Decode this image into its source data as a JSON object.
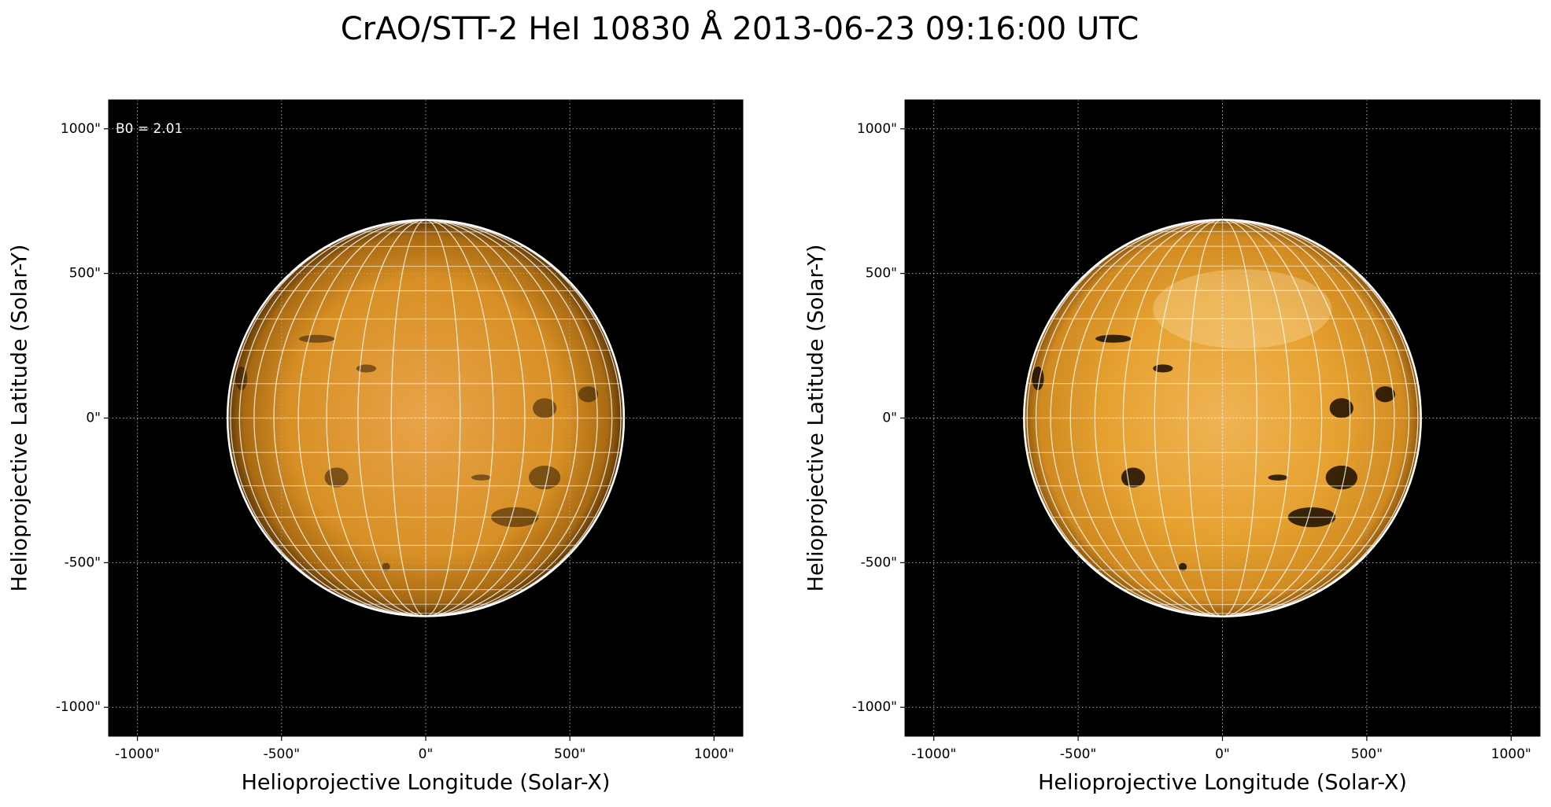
{
  "title": "CrAO/STT-2 HeI 10830 Å 2013-06-23 09:16:00 UTC",
  "chart_data": [
    {
      "type": "image",
      "annotation": "B0 = 2.01",
      "contrast": "low",
      "xlabel": "Helioprojective Longitude (Solar-X)",
      "ylabel": "Helioprojective Latitude (Solar-Y)",
      "xlim": [
        -1100,
        1100
      ],
      "ylim": [
        -1100,
        1100
      ],
      "xticks": [
        {
          "value": -1000,
          "label": "-1000\""
        },
        {
          "value": -500,
          "label": "-500\""
        },
        {
          "value": 0,
          "label": "0\""
        },
        {
          "value": 500,
          "label": "500\""
        },
        {
          "value": 1000,
          "label": "1000\""
        }
      ],
      "yticks": [
        {
          "value": -1000,
          "label": "-1000\""
        },
        {
          "value": -500,
          "label": "-500\""
        },
        {
          "value": 0,
          "label": "0\""
        },
        {
          "value": 500,
          "label": "500\""
        },
        {
          "value": 1000,
          "label": "1000\""
        }
      ],
      "grid": true
    },
    {
      "type": "image",
      "contrast": "high",
      "xlabel": "Helioprojective Longitude (Solar-X)",
      "ylabel": "Helioprojective Latitude (Solar-Y)",
      "xlim": [
        -1100,
        1100
      ],
      "ylim": [
        -1100,
        1100
      ],
      "xticks": [
        {
          "value": -1000,
          "label": "-1000\""
        },
        {
          "value": -500,
          "label": "-500\""
        },
        {
          "value": 0,
          "label": "0\""
        },
        {
          "value": 500,
          "label": "500\""
        },
        {
          "value": 1000,
          "label": "1000\""
        }
      ],
      "yticks": [
        {
          "value": -1000,
          "label": "-1000\""
        },
        {
          "value": -500,
          "label": "-500\""
        },
        {
          "value": 0,
          "label": "0\""
        },
        {
          "value": 500,
          "label": "500\""
        },
        {
          "value": 1000,
          "label": "1000\""
        }
      ],
      "grid": true
    }
  ]
}
